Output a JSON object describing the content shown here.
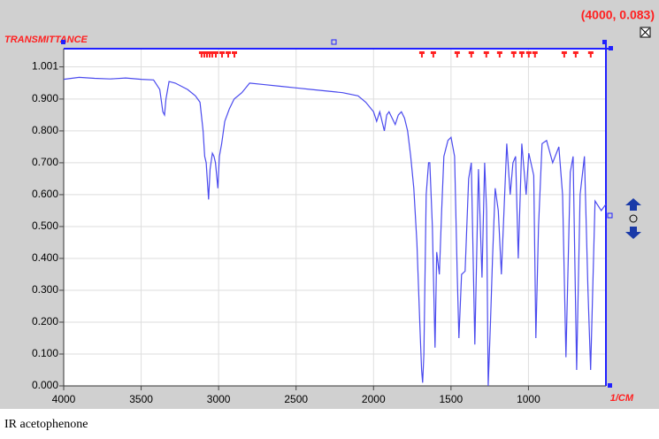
{
  "chart_data": {
    "type": "line",
    "readout": "(4000, 0.083)",
    "y_label": "TRANSMITTANCE",
    "x_label": "1/CM",
    "caption": "IR acetophenone",
    "color": "#4a4aee",
    "marker_color": "#ff2020",
    "grid": true,
    "xlim": [
      4000,
      500
    ],
    "ylim": [
      0,
      1.058
    ],
    "xticks": [
      4000,
      3500,
      3000,
      2500,
      2000,
      1500,
      1000
    ],
    "yticks": [
      {
        "value": 0,
        "label": "0.000"
      },
      {
        "value": 0.1,
        "label": "0.100"
      },
      {
        "value": 0.2,
        "label": "0.200"
      },
      {
        "value": 0.3,
        "label": "0.300"
      },
      {
        "value": 0.4,
        "label": "0.400"
      },
      {
        "value": 0.5,
        "label": "0.500"
      },
      {
        "value": 0.6,
        "label": "0.600"
      },
      {
        "value": 0.7,
        "label": "0.700"
      },
      {
        "value": 0.8,
        "label": "0.800"
      },
      {
        "value": 0.9,
        "label": "0.900"
      },
      1.001
    ],
    "peaks": [
      3110,
      3092,
      3075,
      3058,
      3041,
      3018,
      2978,
      2938,
      2898,
      1688,
      1614,
      1460,
      1369,
      1272,
      1186,
      1095,
      1043,
      998,
      958,
      769,
      695,
      598
    ],
    "x": [
      4000,
      3900,
      3800,
      3700,
      3600,
      3500,
      3420,
      3380,
      3360,
      3349,
      3340,
      3320,
      3280,
      3200,
      3150,
      3120,
      3100,
      3090,
      3080,
      3065,
      3055,
      3040,
      3030,
      3020,
      3005,
      2995,
      2980,
      2960,
      2930,
      2900,
      2850,
      2800,
      2700,
      2600,
      2500,
      2400,
      2300,
      2200,
      2100,
      2050,
      2000,
      1980,
      1960,
      1945,
      1930,
      1915,
      1900,
      1880,
      1860,
      1840,
      1820,
      1800,
      1780,
      1760,
      1740,
      1720,
      1700,
      1690,
      1683,
      1675,
      1660,
      1645,
      1637,
      1620,
      1603,
      1592,
      1575,
      1560,
      1546,
      1520,
      1500,
      1477,
      1460,
      1449,
      1432,
      1409,
      1386,
      1369,
      1346,
      1323,
      1300,
      1283,
      1270,
      1260,
      1245,
      1232,
      1215,
      1195,
      1175,
      1140,
      1118,
      1100,
      1083,
      1066,
      1043,
      1015,
      998,
      966,
      952,
      935,
      912,
      883,
      844,
      804,
      780,
      758,
      730,
      712,
      689,
      667,
      639,
      616,
      599,
      570,
      530,
      500
    ],
    "values": [
      0.962,
      0.968,
      0.965,
      0.963,
      0.966,
      0.962,
      0.96,
      0.93,
      0.86,
      0.85,
      0.9,
      0.955,
      0.95,
      0.93,
      0.91,
      0.89,
      0.8,
      0.72,
      0.7,
      0.585,
      0.68,
      0.73,
      0.72,
      0.7,
      0.62,
      0.72,
      0.76,
      0.83,
      0.87,
      0.9,
      0.92,
      0.95,
      0.945,
      0.94,
      0.935,
      0.93,
      0.925,
      0.92,
      0.91,
      0.89,
      0.86,
      0.83,
      0.86,
      0.83,
      0.8,
      0.85,
      0.86,
      0.84,
      0.82,
      0.85,
      0.86,
      0.84,
      0.8,
      0.72,
      0.62,
      0.45,
      0.18,
      0.05,
      0.01,
      0.1,
      0.6,
      0.7,
      0.7,
      0.5,
      0.12,
      0.42,
      0.35,
      0.55,
      0.72,
      0.77,
      0.78,
      0.72,
      0.35,
      0.15,
      0.35,
      0.36,
      0.65,
      0.7,
      0.13,
      0.68,
      0.34,
      0.7,
      0.55,
      0.0,
      0.2,
      0.4,
      0.62,
      0.55,
      0.35,
      0.76,
      0.6,
      0.7,
      0.72,
      0.4,
      0.76,
      0.6,
      0.73,
      0.66,
      0.15,
      0.5,
      0.76,
      0.77,
      0.7,
      0.75,
      0.6,
      0.09,
      0.67,
      0.72,
      0.05,
      0.6,
      0.72,
      0.3,
      0.05,
      0.58,
      0.55,
      0.57
    ]
  }
}
